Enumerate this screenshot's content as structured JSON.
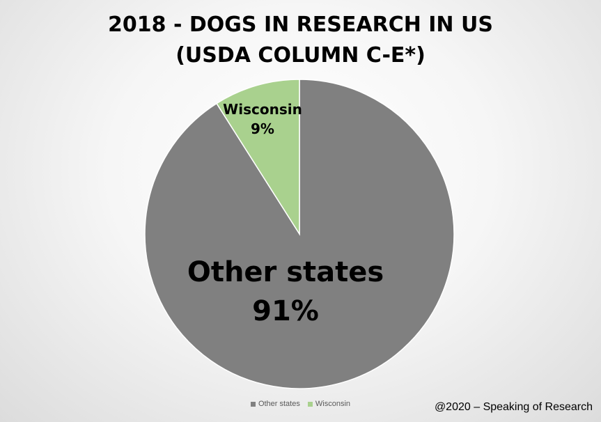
{
  "chart_data": {
    "type": "pie",
    "title_lines": [
      "2018 - DOGS IN RESEARCH IN US",
      "(USDA COLUMN C-E*)"
    ],
    "slices": [
      {
        "label": "Other states",
        "value": 91,
        "value_label": "91%",
        "color": "#808080"
      },
      {
        "label": "Wisconsin",
        "value": 9,
        "value_label": "9%",
        "color": "#a9d18e"
      }
    ],
    "legend": {
      "placement": "bottom",
      "entries": [
        "Other states",
        "Wisconsin"
      ]
    }
  },
  "credit": "@2020 – Speaking of Research",
  "colors": {
    "other_states": "#808080",
    "wisconsin": "#a9d18e"
  }
}
